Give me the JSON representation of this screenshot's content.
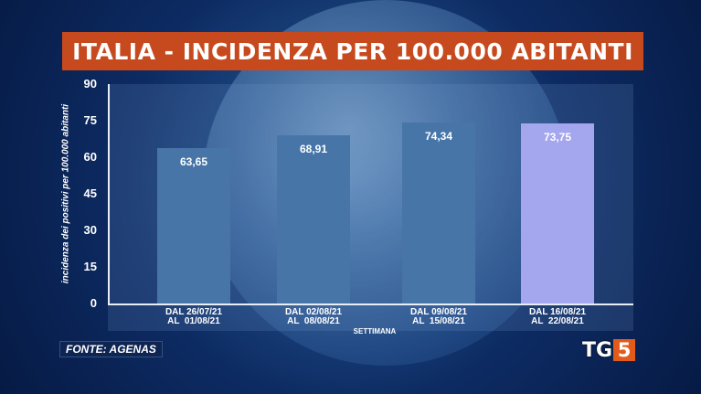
{
  "title": "ITALIA - INCIDENZA PER 100.000 ABITANTI",
  "source": "FONTE: AGENAS",
  "logo": {
    "text": "TG",
    "number": "5"
  },
  "colors": {
    "title_bar": "#c74a1f",
    "bar": "#4775a8",
    "bar_highlight": "#a4a6ee",
    "logo_accent": "#e35b1b"
  },
  "chart_data": {
    "type": "bar",
    "title": "ITALIA - INCIDENZA PER 100.000 ABITANTI",
    "xlabel": "SETTIMANA",
    "ylabel": "incidenza dei positivi per 100.000 abitanti",
    "ylim": [
      0,
      90
    ],
    "yticks": [
      0,
      15,
      30,
      45,
      60,
      75,
      90
    ],
    "categories": [
      "DAL 26/07/21\nAL  01/08/21",
      "DAL 02/08/21\nAL  08/08/21",
      "DAL 09/08/21\nAL  15/08/21",
      "DAL 16/08/21\nAL  22/08/21"
    ],
    "values": [
      63.65,
      68.91,
      74.34,
      73.75
    ],
    "value_labels": [
      "63,65",
      "68,91",
      "74,34",
      "73,75"
    ],
    "highlight_index": 3,
    "grid": false
  }
}
